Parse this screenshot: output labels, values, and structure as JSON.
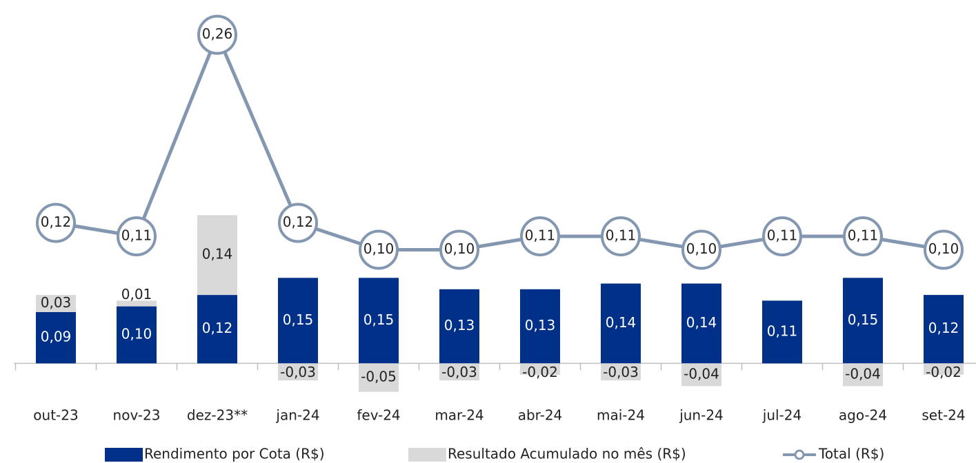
{
  "chart_data": {
    "type": "bar-line",
    "categories": [
      "out-23",
      "nov-23",
      "dez-23**",
      "jan-24",
      "fev-24",
      "mar-24",
      "abr-24",
      "mai-24",
      "jun-24",
      "jul-24",
      "ago-24",
      "set-24"
    ],
    "series": [
      {
        "name": "Rendimento por Cota (R$)",
        "color": "#003087",
        "kind": "bar",
        "values": [
          0.09,
          0.1,
          0.12,
          0.15,
          0.15,
          0.13,
          0.13,
          0.14,
          0.14,
          0.11,
          0.15,
          0.12
        ],
        "value_labels": [
          "0,09",
          "0,10",
          "0,12",
          "0,15",
          "0,15",
          "0,13",
          "0,13",
          "0,14",
          "0,14",
          "0,11",
          "0,15",
          "0,12"
        ]
      },
      {
        "name": "Resultado Acumulado no mês (R$)",
        "color": "#d9d9d9",
        "kind": "bar",
        "values": [
          0.03,
          0.01,
          0.14,
          -0.03,
          -0.05,
          -0.03,
          -0.02,
          -0.03,
          -0.04,
          null,
          -0.04,
          -0.02
        ],
        "value_labels": [
          "0,03",
          "0,01",
          "0,14",
          "-0,03",
          "-0,05",
          "-0,03",
          "-0,02",
          "-0,03",
          "-0,04",
          null,
          "-0,04",
          "-0,02"
        ]
      },
      {
        "name": "Total (R$)",
        "color": "#8497b0",
        "kind": "line",
        "axis": "y2",
        "values": [
          0.12,
          0.11,
          0.26,
          0.12,
          0.1,
          0.1,
          0.11,
          0.11,
          0.1,
          0.11,
          0.11,
          0.1
        ],
        "value_labels": [
          "0,12",
          "0,11",
          "0,26",
          "0,12",
          "0,10",
          "0,10",
          "0,11",
          "0,11",
          "0,10",
          "0,11",
          "0,11",
          "0,10"
        ]
      }
    ],
    "ylim": [
      -0.06,
      0.6
    ],
    "y2lim": [
      -0.01,
      0.27
    ]
  }
}
